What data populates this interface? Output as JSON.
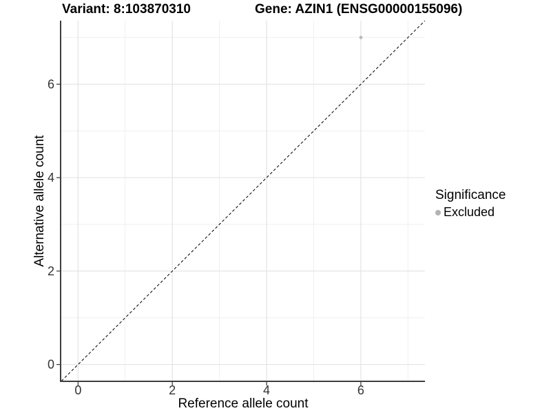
{
  "title": {
    "variant": "Variant: 8:103870310",
    "gene": "Gene: AZIN1 (ENSG00000155096)"
  },
  "chart_data": {
    "type": "scatter",
    "title_left": "Variant: 8:103870310",
    "title_right": "Gene: AZIN1 (ENSG00000155096)",
    "xlabel": "Reference allele count",
    "ylabel": "Alternative allele count",
    "xlim": [
      -0.37,
      7.36
    ],
    "ylim": [
      -0.36,
      7.36
    ],
    "x_ticks": [
      0,
      2,
      4,
      6
    ],
    "y_ticks": [
      0,
      2,
      4,
      6
    ],
    "x_minor_gridlines": [
      1,
      3,
      5,
      7
    ],
    "y_minor_gridlines": [
      1,
      3,
      5,
      7
    ],
    "grid": true,
    "legend_position": "right",
    "identity_line": {
      "style": "dashed",
      "color": "#111111",
      "from": -0.5,
      "to": 7.5
    },
    "series": [
      {
        "name": "Excluded",
        "color": "#b9b9b9",
        "point_radius": 2.4,
        "points": [
          {
            "x": 6,
            "y": 7
          }
        ]
      }
    ],
    "legend": {
      "title": "Significance",
      "entries": [
        {
          "label": "Excluded",
          "color": "#b3b3b3"
        }
      ]
    },
    "style": {
      "grid_major_color": "#e3e3e3",
      "grid_minor_color": "#efefef",
      "axis_line_color": "#3d3d3d",
      "tick_color": "#333333",
      "tick_label_color": "#333333"
    }
  }
}
